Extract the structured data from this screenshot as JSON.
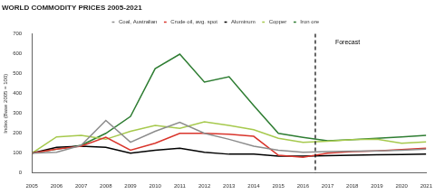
{
  "chart_data": {
    "type": "line",
    "title": "WORLD COMMODITY PRICES 2005-2021",
    "y_label": "Index (Base 2005 = 100)",
    "x": [
      2005,
      2006,
      2007,
      2008,
      2009,
      2010,
      2011,
      2012,
      2013,
      2014,
      2015,
      2016,
      2017,
      2018,
      2019,
      2020,
      2021
    ],
    "xlim": [
      2005,
      2021
    ],
    "xticks": [
      2005,
      2006,
      2007,
      2008,
      2009,
      2010,
      2011,
      2012,
      2013,
      2014,
      2015,
      2016,
      2017,
      2018,
      2019,
      2020,
      2021
    ],
    "ylim": [
      0,
      700
    ],
    "yticks": [
      0,
      100,
      200,
      300,
      400,
      500,
      600,
      700
    ],
    "grid": false,
    "legend": "top",
    "annotations": [
      {
        "text": "Forecast",
        "x": 2016.5,
        "line_style": "dashed"
      }
    ],
    "series": [
      {
        "name": "Coal, Australian",
        "color": "#8c8c8c",
        "values": [
          100,
          105,
          140,
          265,
          155,
          210,
          255,
          200,
          170,
          135,
          115,
          105,
          108,
          110,
          112,
          115,
          120
        ]
      },
      {
        "name": "Crude oil, avg. spot",
        "color": "#d9342b",
        "values": [
          100,
          120,
          135,
          180,
          115,
          150,
          200,
          200,
          195,
          185,
          90,
          80,
          100,
          108,
          112,
          118,
          125
        ]
      },
      {
        "name": "Aluminum",
        "color": "#000000",
        "values": [
          100,
          130,
          135,
          130,
          100,
          115,
          125,
          105,
          95,
          95,
          85,
          85,
          88,
          90,
          92,
          93,
          95
        ]
      },
      {
        "name": "Copper",
        "color": "#a6c94d",
        "values": [
          100,
          182,
          190,
          170,
          210,
          240,
          225,
          258,
          240,
          218,
          175,
          155,
          160,
          168,
          170,
          150,
          157
        ]
      },
      {
        "name": "Iron ore",
        "color": "#2e7d32",
        "values": [
          100,
          120,
          140,
          200,
          285,
          525,
          598,
          458,
          485,
          340,
          200,
          180,
          162,
          168,
          175,
          182,
          190
        ]
      }
    ]
  }
}
